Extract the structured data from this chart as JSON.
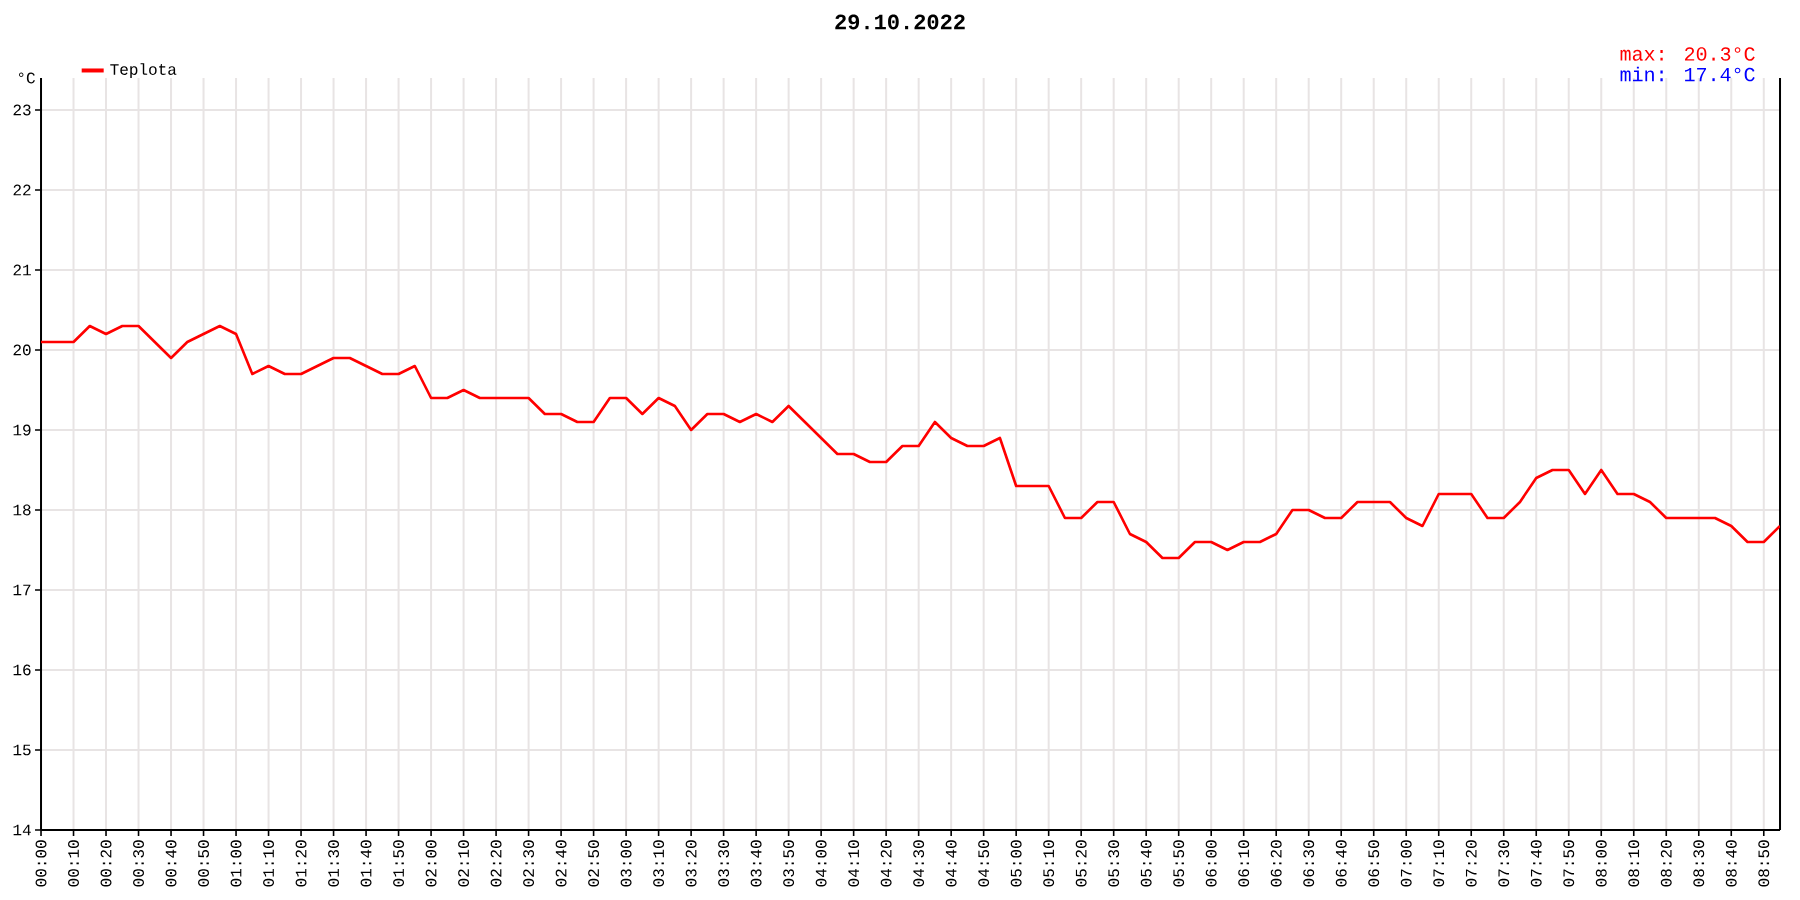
{
  "chart_data": {
    "type": "line",
    "title": "29.10.2022",
    "ylabel": "°C",
    "annotations": [
      "max: 20.3°C",
      "min: 17.4°C"
    ],
    "x": [
      "2022-10-29T00:00",
      "2022-10-29T00:05",
      "2022-10-29T00:10",
      "2022-10-29T00:15",
      "2022-10-29T00:20",
      "2022-10-29T00:25",
      "2022-10-29T00:30",
      "2022-10-29T00:35",
      "2022-10-29T00:40",
      "2022-10-29T00:45",
      "2022-10-29T00:50",
      "2022-10-29T00:55",
      "2022-10-29T01:00",
      "2022-10-29T01:05",
      "2022-10-29T01:10",
      "2022-10-29T01:15",
      "2022-10-29T01:20",
      "2022-10-29T01:25",
      "2022-10-29T01:30",
      "2022-10-29T01:35",
      "2022-10-29T01:40",
      "2022-10-29T01:45",
      "2022-10-29T01:50",
      "2022-10-29T01:55",
      "2022-10-29T02:00",
      "2022-10-29T02:05",
      "2022-10-29T02:10",
      "2022-10-29T02:15",
      "2022-10-29T02:20",
      "2022-10-29T02:25",
      "2022-10-29T02:30",
      "2022-10-29T02:35",
      "2022-10-29T02:40",
      "2022-10-29T02:45",
      "2022-10-29T02:50",
      "2022-10-29T02:55",
      "2022-10-29T03:00",
      "2022-10-29T03:05",
      "2022-10-29T03:10",
      "2022-10-29T03:15",
      "2022-10-29T03:20",
      "2022-10-29T03:25",
      "2022-10-29T03:30",
      "2022-10-29T03:35",
      "2022-10-29T03:40",
      "2022-10-29T03:45",
      "2022-10-29T03:50",
      "2022-10-29T03:55",
      "2022-10-29T04:00",
      "2022-10-29T04:05",
      "2022-10-29T04:10",
      "2022-10-29T04:15",
      "2022-10-29T04:20",
      "2022-10-29T04:25",
      "2022-10-29T04:30",
      "2022-10-29T04:35",
      "2022-10-29T04:40",
      "2022-10-29T04:45",
      "2022-10-29T04:50",
      "2022-10-29T04:55",
      "2022-10-29T05:00",
      "2022-10-29T05:05",
      "2022-10-29T05:10",
      "2022-10-29T05:15",
      "2022-10-29T05:20",
      "2022-10-29T05:25",
      "2022-10-29T05:30",
      "2022-10-29T05:35",
      "2022-10-29T05:40",
      "2022-10-29T05:45",
      "2022-10-29T05:50",
      "2022-10-29T05:55",
      "2022-10-29T06:00",
      "2022-10-29T06:05",
      "2022-10-29T06:10",
      "2022-10-29T06:15",
      "2022-10-29T06:20",
      "2022-10-29T06:25",
      "2022-10-29T06:30",
      "2022-10-29T06:35",
      "2022-10-29T06:40",
      "2022-10-29T06:45",
      "2022-10-29T06:50",
      "2022-10-29T06:55",
      "2022-10-29T07:00",
      "2022-10-29T07:05",
      "2022-10-29T07:10",
      "2022-10-29T07:15",
      "2022-10-29T07:20",
      "2022-10-29T07:25",
      "2022-10-29T07:30",
      "2022-10-29T07:35",
      "2022-10-29T07:40",
      "2022-10-29T07:45",
      "2022-10-29T07:50",
      "2022-10-29T07:55",
      "2022-10-29T08:00",
      "2022-10-29T08:05",
      "2022-10-29T08:10",
      "2022-10-29T08:15",
      "2022-10-29T08:20",
      "2022-10-29T08:25",
      "2022-10-29T08:30",
      "2022-10-29T08:35",
      "2022-10-29T08:40",
      "2022-10-29T08:45",
      "2022-10-29T08:50",
      "2022-10-29T08:55"
    ],
    "series": [
      {
        "name": "Teplota",
        "color": "#ff0000",
        "values": [
          20.1,
          20.1,
          20.1,
          20.3,
          20.2,
          20.3,
          20.3,
          20.1,
          19.9,
          20.1,
          20.2,
          20.3,
          20.2,
          19.7,
          19.8,
          19.7,
          19.7,
          19.8,
          19.9,
          19.9,
          19.8,
          19.7,
          19.7,
          19.8,
          19.4,
          19.4,
          19.5,
          19.4,
          19.4,
          19.4,
          19.4,
          19.2,
          19.2,
          19.1,
          19.1,
          19.4,
          19.4,
          19.2,
          19.4,
          19.3,
          19.0,
          19.2,
          19.2,
          19.1,
          19.2,
          19.1,
          19.3,
          19.1,
          18.9,
          18.7,
          18.7,
          18.6,
          18.6,
          18.8,
          18.8,
          19.1,
          18.9,
          18.8,
          18.8,
          18.9,
          18.3,
          18.3,
          18.3,
          17.9,
          17.9,
          18.1,
          18.1,
          17.7,
          17.6,
          17.4,
          17.4,
          17.6,
          17.6,
          17.5,
          17.6,
          17.6,
          17.7,
          18.0,
          18.0,
          17.9,
          17.9,
          18.1,
          18.1,
          18.1,
          17.9,
          17.8,
          18.2,
          18.2,
          18.2,
          17.9,
          17.9,
          18.1,
          18.4,
          18.5,
          18.5,
          18.2,
          18.5,
          18.2,
          18.2,
          18.1,
          17.9,
          17.9,
          17.9,
          17.9,
          17.8,
          17.6,
          17.6,
          17.8
        ]
      }
    ],
    "xlim": [
      "2022-10-29T00:00",
      "2022-10-29T08:55"
    ],
    "ylim": [
      14,
      23.4
    ],
    "xticks": [
      {
        "value": "2022-10-29T00:00",
        "label": "00:00"
      },
      {
        "value": "2022-10-29T00:10",
        "label": "00:10"
      },
      {
        "value": "2022-10-29T00:20",
        "label": "00:20"
      },
      {
        "value": "2022-10-29T00:30",
        "label": "00:30"
      },
      {
        "value": "2022-10-29T00:40",
        "label": "00:40"
      },
      {
        "value": "2022-10-29T00:50",
        "label": "00:50"
      },
      {
        "value": "2022-10-29T01:00",
        "label": "01:00"
      },
      {
        "value": "2022-10-29T01:10",
        "label": "01:10"
      },
      {
        "value": "2022-10-29T01:20",
        "label": "01:20"
      },
      {
        "value": "2022-10-29T01:30",
        "label": "01:30"
      },
      {
        "value": "2022-10-29T01:40",
        "label": "01:40"
      },
      {
        "value": "2022-10-29T01:50",
        "label": "01:50"
      },
      {
        "value": "2022-10-29T02:00",
        "label": "02:00"
      },
      {
        "value": "2022-10-29T02:10",
        "label": "02:10"
      },
      {
        "value": "2022-10-29T02:20",
        "label": "02:20"
      },
      {
        "value": "2022-10-29T02:30",
        "label": "02:30"
      },
      {
        "value": "2022-10-29T02:40",
        "label": "02:40"
      },
      {
        "value": "2022-10-29T02:50",
        "label": "02:50"
      },
      {
        "value": "2022-10-29T03:00",
        "label": "03:00"
      },
      {
        "value": "2022-10-29T03:10",
        "label": "03:10"
      },
      {
        "value": "2022-10-29T03:20",
        "label": "03:20"
      },
      {
        "value": "2022-10-29T03:30",
        "label": "03:30"
      },
      {
        "value": "2022-10-29T03:40",
        "label": "03:40"
      },
      {
        "value": "2022-10-29T03:50",
        "label": "03:50"
      },
      {
        "value": "2022-10-29T04:00",
        "label": "04:00"
      },
      {
        "value": "2022-10-29T04:10",
        "label": "04:10"
      },
      {
        "value": "2022-10-29T04:20",
        "label": "04:20"
      },
      {
        "value": "2022-10-29T04:30",
        "label": "04:30"
      },
      {
        "value": "2022-10-29T04:40",
        "label": "04:40"
      },
      {
        "value": "2022-10-29T04:50",
        "label": "04:50"
      },
      {
        "value": "2022-10-29T05:00",
        "label": "05:00"
      },
      {
        "value": "2022-10-29T05:10",
        "label": "05:10"
      },
      {
        "value": "2022-10-29T05:20",
        "label": "05:20"
      },
      {
        "value": "2022-10-29T05:30",
        "label": "05:30"
      },
      {
        "value": "2022-10-29T05:40",
        "label": "05:40"
      },
      {
        "value": "2022-10-29T05:50",
        "label": "05:50"
      },
      {
        "value": "2022-10-29T06:00",
        "label": "06:00"
      },
      {
        "value": "2022-10-29T06:10",
        "label": "06:10"
      },
      {
        "value": "2022-10-29T06:20",
        "label": "06:20"
      },
      {
        "value": "2022-10-29T06:30",
        "label": "06:30"
      },
      {
        "value": "2022-10-29T06:40",
        "label": "06:40"
      },
      {
        "value": "2022-10-29T06:50",
        "label": "06:50"
      },
      {
        "value": "2022-10-29T07:00",
        "label": "07:00"
      },
      {
        "value": "2022-10-29T07:10",
        "label": "07:10"
      },
      {
        "value": "2022-10-29T07:20",
        "label": "07:20"
      },
      {
        "value": "2022-10-29T07:30",
        "label": "07:30"
      },
      {
        "value": "2022-10-29T07:40",
        "label": "07:40"
      },
      {
        "value": "2022-10-29T07:50",
        "label": "07:50"
      },
      {
        "value": "2022-10-29T08:00",
        "label": "08:00"
      },
      {
        "value": "2022-10-29T08:10",
        "label": "08:10"
      },
      {
        "value": "2022-10-29T08:20",
        "label": "08:20"
      },
      {
        "value": "2022-10-29T08:30",
        "label": "08:30"
      },
      {
        "value": "2022-10-29T08:40",
        "label": "08:40"
      },
      {
        "value": "2022-10-29T08:50",
        "label": "08:50"
      }
    ],
    "yticks": [
      14,
      15,
      16,
      17,
      18,
      19,
      20,
      21,
      22,
      23
    ],
    "grid": true,
    "legend": "top left",
    "marker": "none",
    "line_style": "solid"
  }
}
